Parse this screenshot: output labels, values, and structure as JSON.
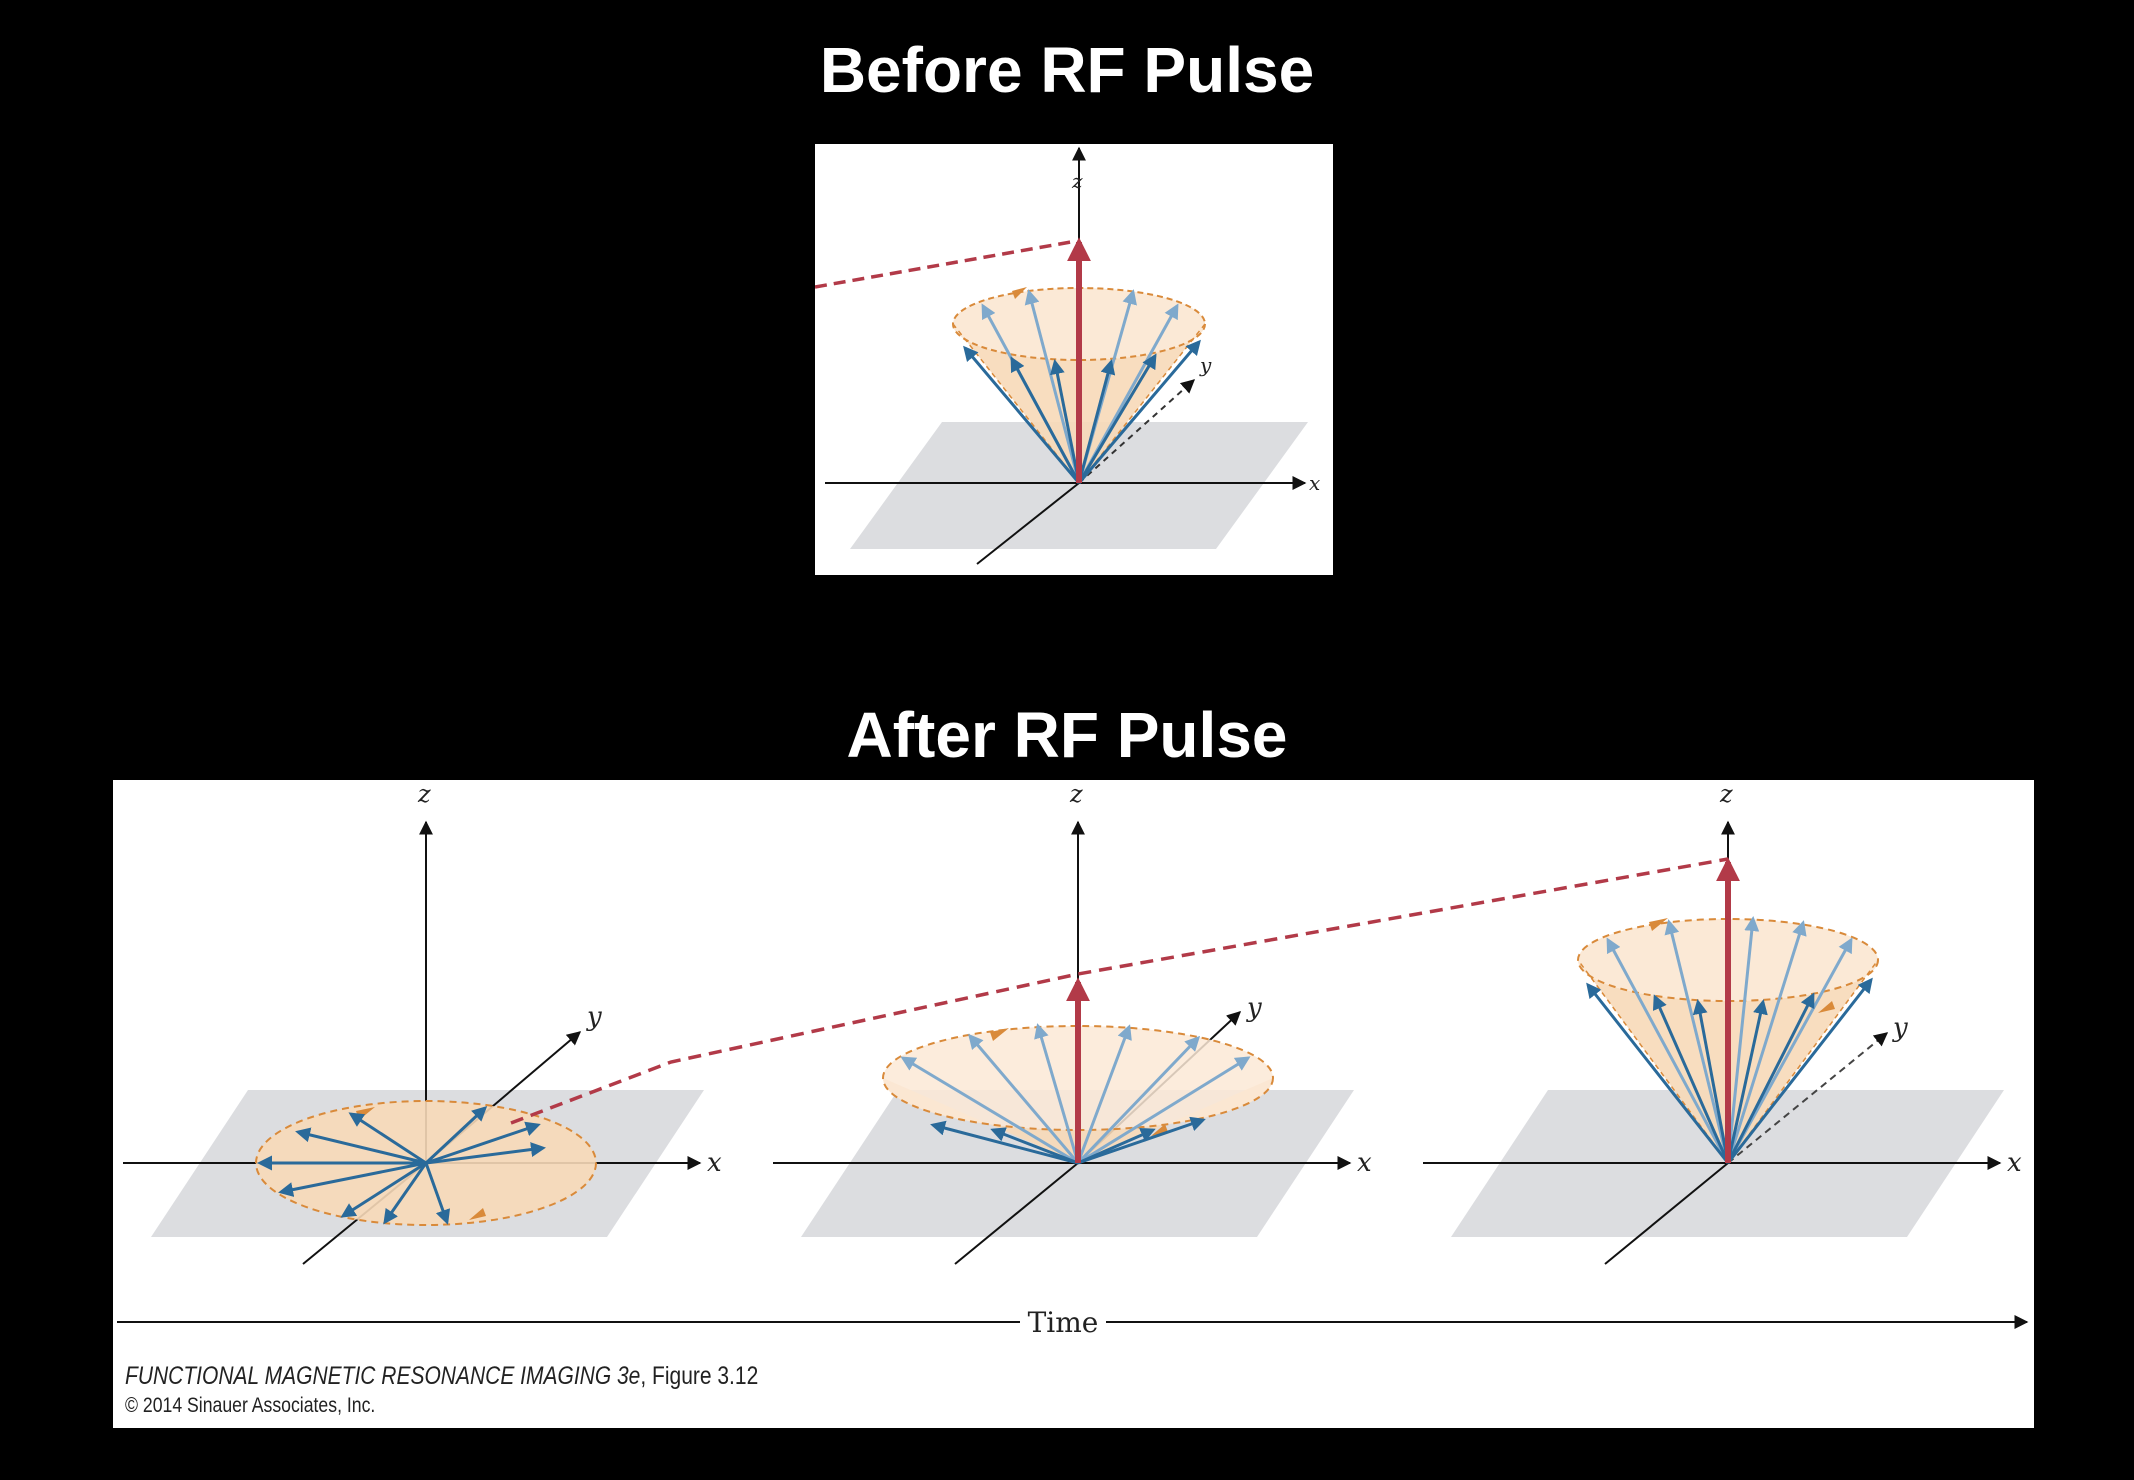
{
  "titles": {
    "before": "Before RF Pulse",
    "after": "After RF Pulse"
  },
  "axes": {
    "x": "x",
    "y": "y",
    "z": "z"
  },
  "timeline": {
    "label": "Time"
  },
  "caption": {
    "book_title": "FUNCTIONAL MAGNETIC RESONANCE IMAGING 3e",
    "figure_ref": ", Figure 3.12",
    "copyright": "© 2014 Sinauer Associates, Inc."
  },
  "colors": {
    "background": "#000000",
    "panel": "#ffffff",
    "cone_fill": "#f7d9b8",
    "cone_edge": "#d98a3a",
    "net_vector": "#b23a48",
    "spin_vector_dark": "#2a6a9a",
    "spin_vector_light": "#7fa9cc",
    "plane": "#dcdde0",
    "axis": "#111111"
  }
}
